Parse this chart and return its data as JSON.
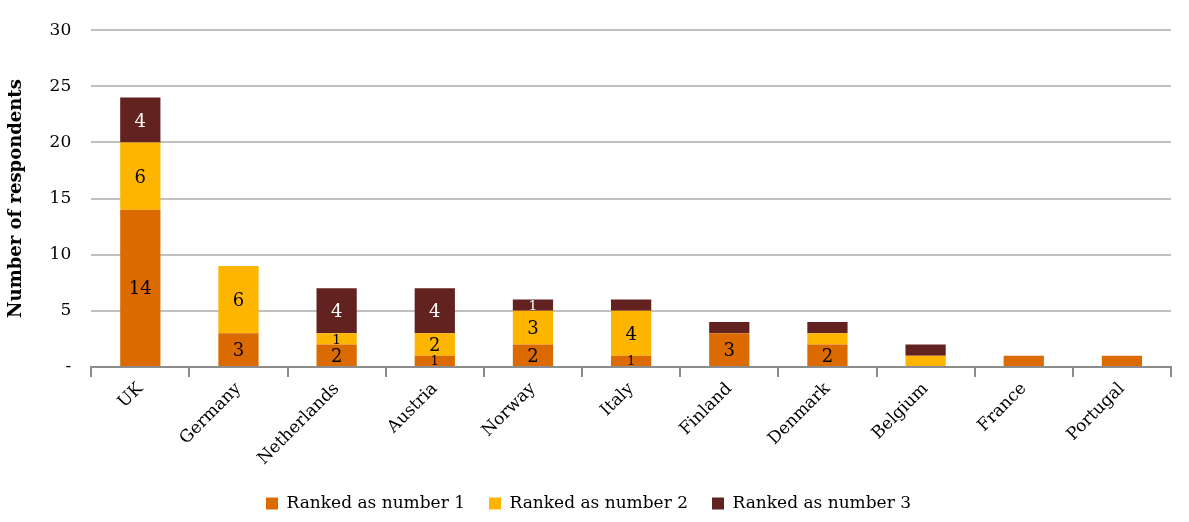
{
  "chart_data": {
    "type": "bar",
    "stacked": true,
    "ylabel": "Number of respondents",
    "categories": [
      "UK",
      "Germany",
      "Netherlands",
      "Austria",
      "Norway",
      "Italy",
      "Finland",
      "Denmark",
      "Belgium",
      "France",
      "Portugal"
    ],
    "series": [
      {
        "name": "Ranked as number 1",
        "color": "#db6b00",
        "values": [
          14,
          3,
          2,
          1,
          2,
          1,
          3,
          2,
          0,
          1,
          1
        ],
        "value_labels": [
          "14",
          "3",
          "2",
          "1",
          "2",
          "1",
          "3",
          "2",
          null,
          null,
          null
        ]
      },
      {
        "name": "Ranked as number 2",
        "color": "#feb500",
        "values": [
          6,
          6,
          1,
          2,
          3,
          4,
          0,
          1,
          1,
          0,
          0
        ],
        "value_labels": [
          "6",
          "6",
          "1",
          "2",
          "3",
          "4",
          null,
          null,
          null,
          null,
          null
        ]
      },
      {
        "name": "Ranked as number 3",
        "color": "#612220",
        "values": [
          4,
          0,
          4,
          4,
          1,
          1,
          1,
          1,
          1,
          0,
          0
        ],
        "value_labels": [
          "4",
          null,
          "4",
          "4",
          "1",
          null,
          null,
          null,
          null,
          null,
          null
        ]
      }
    ],
    "ylim": [
      0,
      30
    ],
    "yticks": [
      {
        "value": 0,
        "label": "-"
      },
      5,
      10,
      15,
      20,
      25,
      30
    ],
    "grid": "y",
    "legend": "bottom"
  }
}
